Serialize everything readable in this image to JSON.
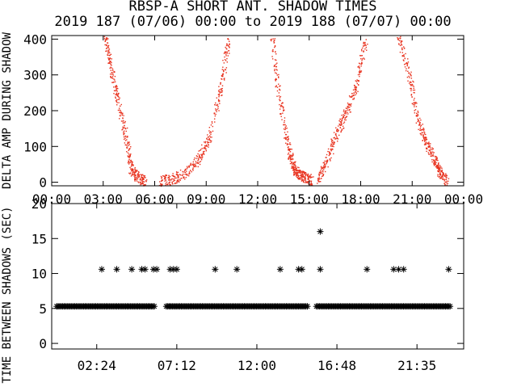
{
  "title": "RBSP-A SHORT ANT. SHADOW TIMES",
  "subtitle": "2019 187 (07/06) 00:00 to 2019 188 (07/07) 00:00",
  "chart_data": [
    {
      "type": "scatter",
      "ylabel": "DELTA AMP DURING SHADOW",
      "xlabel": "",
      "x_unit": "hours",
      "xlim": [
        0,
        24
      ],
      "ylim": [
        -10,
        410
      ],
      "x_ticks": [
        "00:00",
        "03:00",
        "06:00",
        "09:00",
        "12:00",
        "15:00",
        "18:00",
        "21:00",
        "00:00"
      ],
      "y_ticks": [
        "0",
        "100",
        "200",
        "300",
        "400"
      ],
      "marker_color": "#e8321e",
      "grid": false,
      "approx_envelopes": [
        {
          "x": [
            3.1,
            3.4,
            3.8,
            4.3,
            4.6,
            5.0,
            5.4
          ],
          "y": [
            410,
            330,
            240,
            130,
            40,
            15,
            5
          ]
        },
        {
          "x": [
            6.3,
            7.0,
            7.8,
            8.6,
            9.2,
            9.9,
            10.3
          ],
          "y": [
            5,
            10,
            25,
            70,
            130,
            280,
            410
          ]
        },
        {
          "x": [
            12.8,
            13.2,
            13.7,
            14.0,
            14.3,
            14.7,
            15.2
          ],
          "y": [
            410,
            250,
            110,
            50,
            25,
            15,
            5
          ]
        },
        {
          "x": [
            15.5,
            16.0,
            16.6,
            17.2,
            17.8,
            18.3
          ],
          "y": [
            5,
            60,
            140,
            200,
            280,
            410
          ]
        },
        {
          "x": [
            20.2,
            20.8,
            21.3,
            21.8,
            22.3,
            22.6,
            23.0
          ],
          "y": [
            410,
            300,
            180,
            110,
            60,
            30,
            5
          ]
        }
      ]
    },
    {
      "type": "scatter",
      "ylabel": "TIME BETWEEN SHADOWS (SEC)",
      "xlabel": "",
      "x_unit": "hours",
      "xlim": [
        -0.3,
        24.4
      ],
      "ylim": [
        -0.8,
        20
      ],
      "x_ticks": [
        "02:24",
        "07:12",
        "12:00",
        "16:48",
        "21:35"
      ],
      "y_ticks": [
        "0",
        "5",
        "10",
        "15",
        "20"
      ],
      "marker": "asterisk",
      "marker_color": "#000000",
      "baseline_value": 5.3,
      "baseline_gaps": [
        [
          5.9,
          6.5
        ],
        [
          15.1,
          15.5
        ]
      ],
      "points": [
        {
          "x": 2.7,
          "y": 10.6
        },
        {
          "x": 3.6,
          "y": 10.6
        },
        {
          "x": 4.5,
          "y": 10.6
        },
        {
          "x": 5.1,
          "y": 10.6
        },
        {
          "x": 5.3,
          "y": 10.6
        },
        {
          "x": 5.8,
          "y": 10.6
        },
        {
          "x": 6.0,
          "y": 10.6
        },
        {
          "x": 6.8,
          "y": 10.6
        },
        {
          "x": 7.0,
          "y": 10.6
        },
        {
          "x": 7.2,
          "y": 10.6
        },
        {
          "x": 9.5,
          "y": 10.6
        },
        {
          "x": 10.8,
          "y": 10.6
        },
        {
          "x": 13.4,
          "y": 10.6
        },
        {
          "x": 14.5,
          "y": 10.6
        },
        {
          "x": 14.7,
          "y": 10.6
        },
        {
          "x": 15.8,
          "y": 16.0
        },
        {
          "x": 15.8,
          "y": 10.6
        },
        {
          "x": 18.6,
          "y": 10.6
        },
        {
          "x": 20.2,
          "y": 10.6
        },
        {
          "x": 20.5,
          "y": 10.6
        },
        {
          "x": 20.8,
          "y": 10.6
        },
        {
          "x": 23.5,
          "y": 10.6
        }
      ]
    }
  ]
}
